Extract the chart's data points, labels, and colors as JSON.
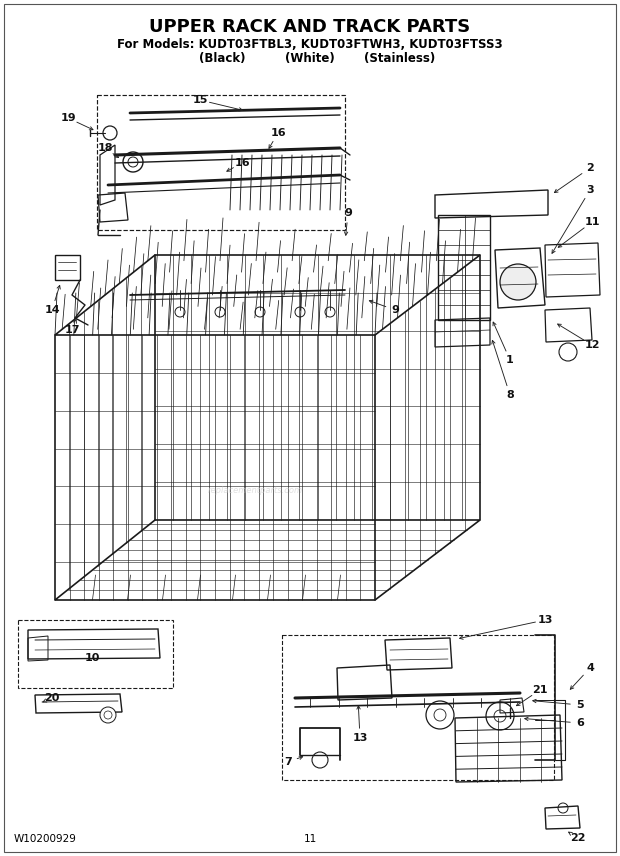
{
  "title": "UPPER RACK AND TRACK PARTS",
  "subtitle": "For Models: KUDT03FTBL3, KUDT03FTWH3, KUDT03FTSS3",
  "subtitle2_col1": "(Black)",
  "subtitle2_col2": "(White)",
  "subtitle2_col3": "(Stainless)",
  "footer_left": "W10200929",
  "footer_center": "11",
  "bg_color": "#ffffff",
  "line_color": "#1a1a1a",
  "title_fontsize": 13,
  "subtitle_fontsize": 8.5,
  "label_fontsize": 8,
  "footer_fontsize": 7.5,
  "fig_width": 6.2,
  "fig_height": 8.56,
  "dpi": 100,
  "border_color": "#888888"
}
